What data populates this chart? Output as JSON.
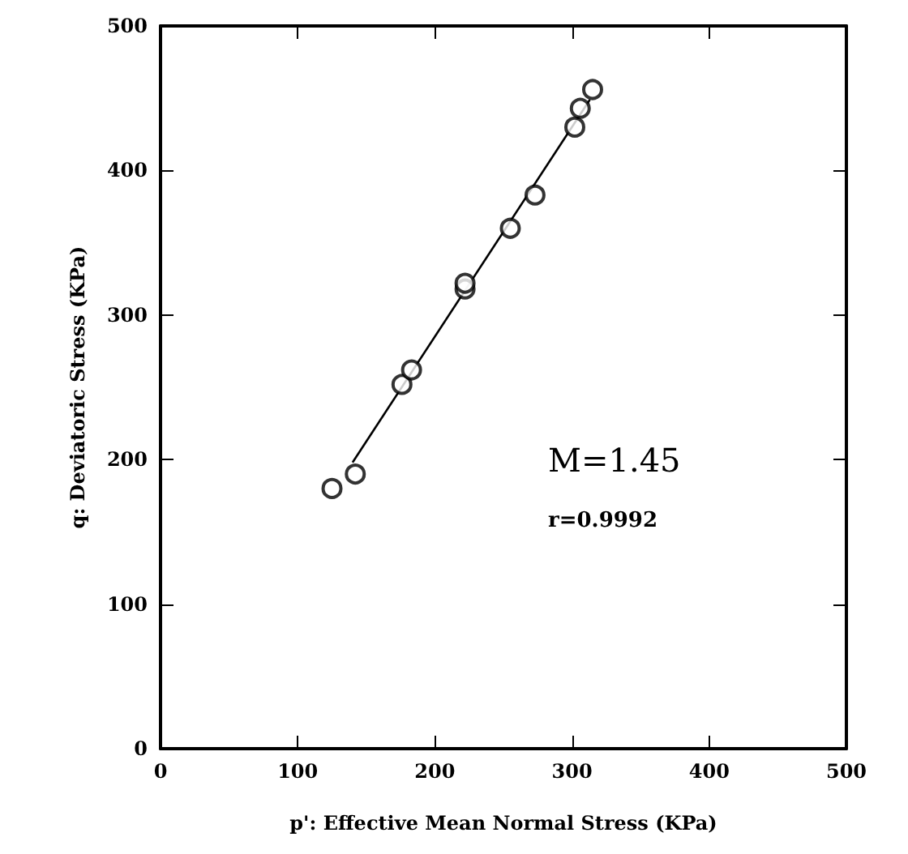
{
  "chart_data": {
    "type": "scatter",
    "xlabel": "p': Effective Mean Normal Stress (KPa)",
    "ylabel": "q: Deviatoric Stress (KPa)",
    "xlim": [
      0,
      500
    ],
    "ylim": [
      0,
      500
    ],
    "xticks": [
      0,
      100,
      200,
      300,
      400,
      500
    ],
    "yticks": [
      0,
      100,
      200,
      300,
      400,
      500
    ],
    "grid": false,
    "series": [
      {
        "color": "#000000",
        "marker": "circle",
        "x": [
          125,
          142,
          176,
          183,
          222,
          222,
          255,
          273,
          302,
          306,
          315
        ],
        "values": [
          180,
          190,
          252,
          262,
          318,
          322,
          360,
          383,
          430,
          443,
          456
        ]
      },
      {
        "type": "line",
        "color": "#000000",
        "marker": "none",
        "x": [
          140,
          313
        ],
        "values": [
          198,
          449
        ]
      }
    ],
    "annotations": [
      "M=1.45",
      "r=0.9992"
    ]
  }
}
